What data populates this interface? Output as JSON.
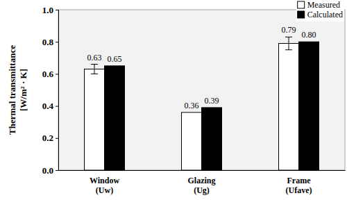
{
  "chart_data": {
    "type": "bar",
    "y_label": "Thermal transmittance\n[W/m² · K]",
    "categories": [
      "Window\n(Uw)",
      "Glazing\n(Ug)",
      "Frame\n(Ufave)"
    ],
    "series": [
      {
        "name": "Measured",
        "color": "#ffffff",
        "values": [
          0.63,
          0.36,
          0.79
        ],
        "errors": [
          0.03,
          null,
          0.04
        ]
      },
      {
        "name": "Calculated",
        "color": "#000000",
        "values": [
          0.65,
          0.39,
          0.8
        ],
        "value_labels": [
          "0.65",
          "0.39",
          "0.80"
        ]
      }
    ],
    "ylim": [
      0,
      1
    ],
    "yticks": [
      {
        "value": 0,
        "label": "0.0"
      },
      {
        "value": 0.2,
        "label": "0.2"
      },
      {
        "value": 0.4,
        "label": "0.4"
      },
      {
        "value": 0.6,
        "label": "0.6"
      },
      {
        "value": 0.8,
        "label": "0.8"
      },
      {
        "value": 1,
        "label": "1.0"
      }
    ],
    "grid": false,
    "legend": "top-right",
    "data_labels": true
  }
}
